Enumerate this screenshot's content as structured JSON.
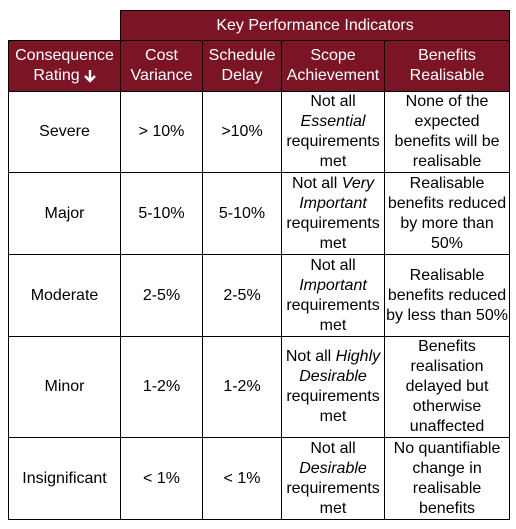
{
  "table": {
    "group_header": "Key Performance Indicators",
    "columns": [
      "Consequence Rating",
      "Cost Variance",
      "Schedule Delay",
      "Scope Achievement",
      "Benefits Realisable"
    ],
    "rows": [
      [
        "Severe",
        "> 10%",
        ">10%",
        {
          "before": "Not all",
          "emphasis": "Essential",
          "after": "requirements met"
        },
        "None of the expected benefits will be realisable"
      ],
      [
        "Major",
        "5-10%",
        "5-10%",
        {
          "before": "Not all",
          "emphasis": "Very Important",
          "after": "requirements met"
        },
        "Realisable benefits reduced by more than 50%"
      ],
      [
        "Moderate",
        "2-5%",
        "2-5%",
        {
          "before": "Not all",
          "emphasis": "Important",
          "after": "requirements met"
        },
        "Realisable benefits reduced by less than 50%"
      ],
      [
        "Minor",
        "1-2%",
        "1-2%",
        {
          "before": "Not all",
          "emphasis": "Highly Desirable",
          "after": "requirements met"
        },
        "Benefits realisation delayed but otherwise unaffected"
      ],
      [
        "Insignificant",
        "< 1%",
        "< 1%",
        {
          "before": "Not all",
          "emphasis": "Desirable",
          "after": "requirements met"
        },
        "No quantifiable change in realisable benefits"
      ]
    ]
  }
}
